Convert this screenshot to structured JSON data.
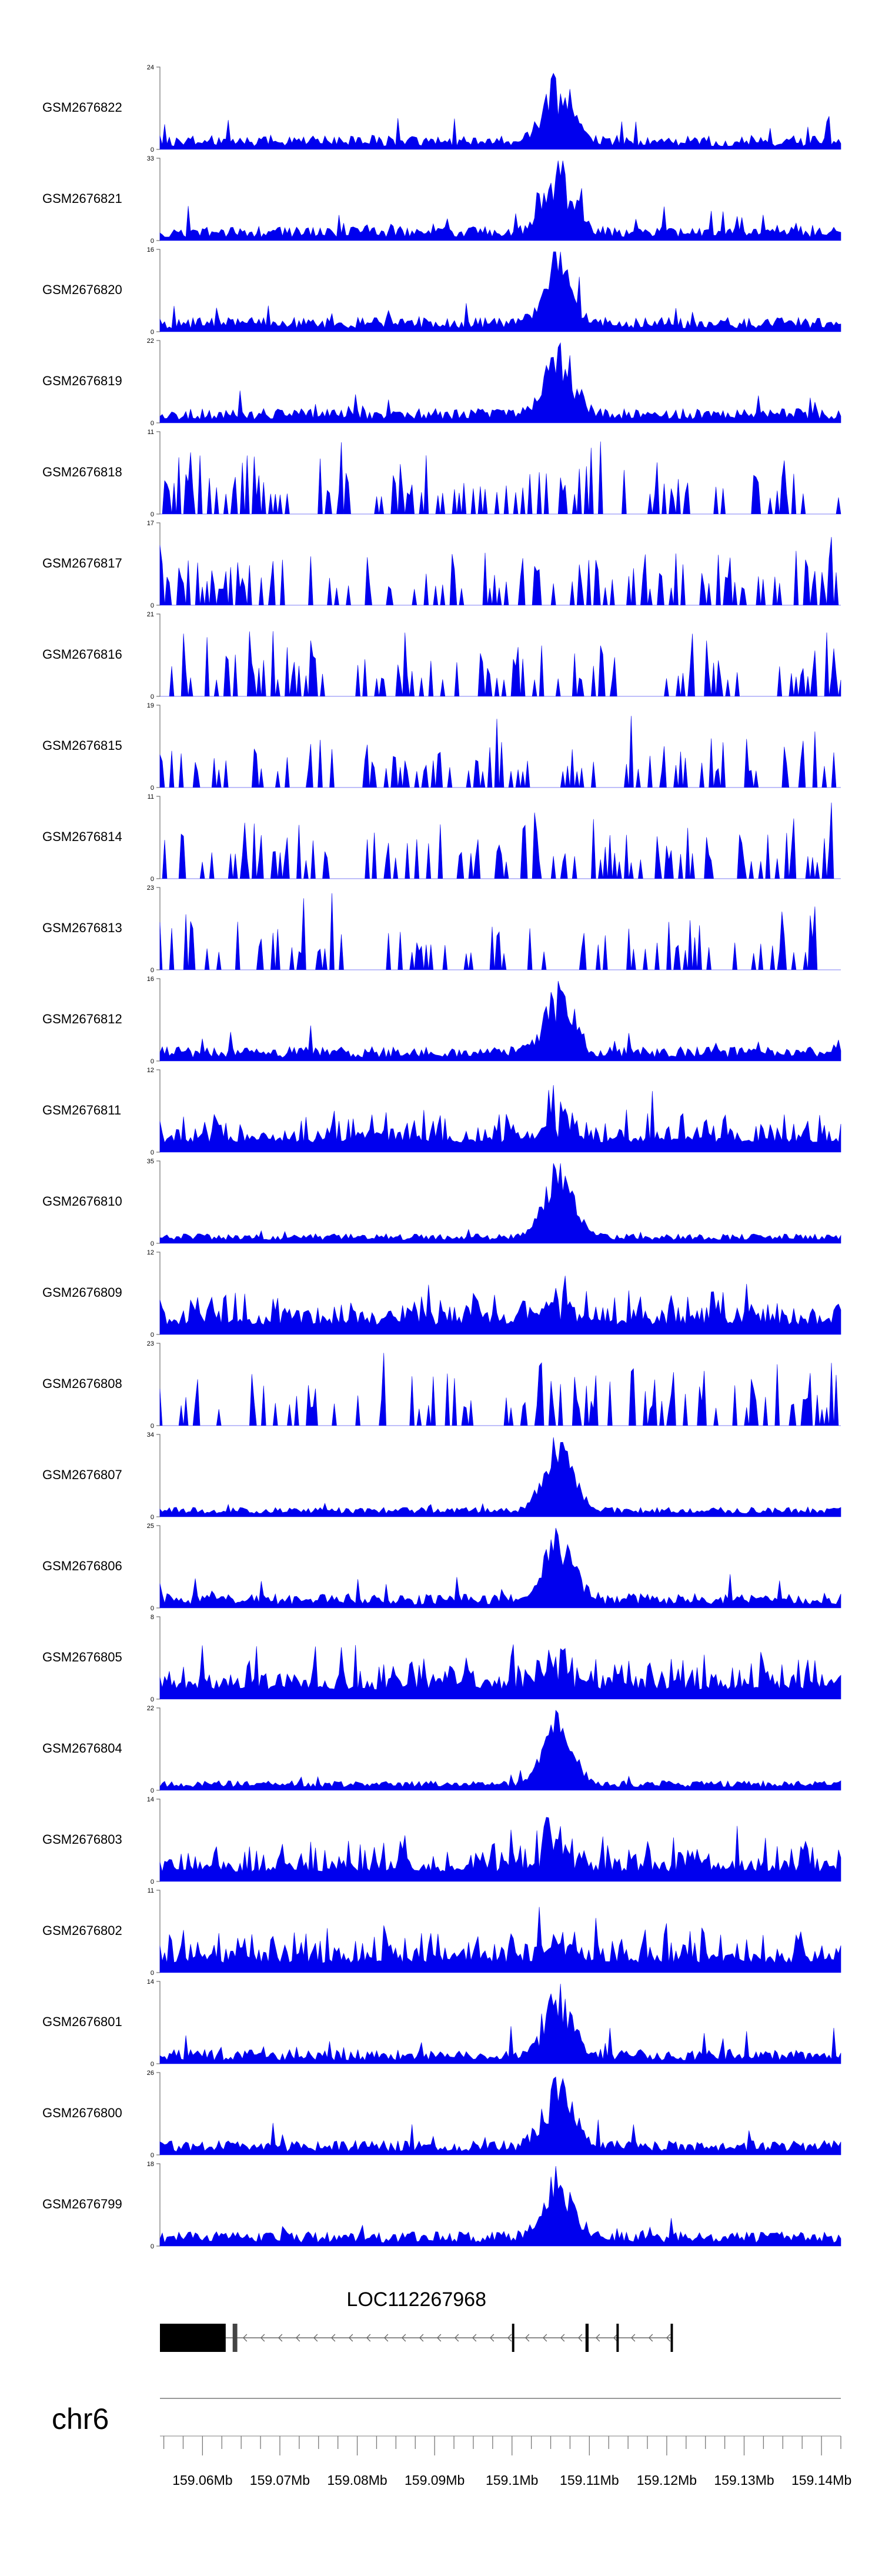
{
  "chart_data": {
    "type": "area",
    "title": "",
    "color": "#0000ee",
    "chromosome": "chr6",
    "x_range_mb": [
      159.0545,
      159.1425
    ],
    "x_ticks_mb": [
      159.06,
      159.07,
      159.08,
      159.09,
      159.1,
      159.11,
      159.12,
      159.13,
      159.14
    ],
    "x_tick_labels": [
      "159.06Mb",
      "159.07Mb",
      "159.08Mb",
      "159.09Mb",
      "159.1Mb",
      "159.11Mb",
      "159.12Mb",
      "159.13Mb",
      "159.14Mb"
    ],
    "series": [
      {
        "name": "GSM2676822",
        "ymax": 24,
        "ymax_label": "24",
        "ymin_label": "0",
        "style": "dense",
        "seed": 11
      },
      {
        "name": "GSM2676821",
        "ymax": 33,
        "ymax_label": "33",
        "ymin_label": "0",
        "style": "dense",
        "seed": 12
      },
      {
        "name": "GSM2676820",
        "ymax": 16,
        "ymax_label": "16",
        "ymin_label": "0",
        "style": "dense",
        "seed": 13
      },
      {
        "name": "GSM2676819",
        "ymax": 22,
        "ymax_label": "22",
        "ymin_label": "0",
        "style": "dense",
        "seed": 14
      },
      {
        "name": "GSM2676818",
        "ymax": 11,
        "ymax_label": "11",
        "ymin_label": "0",
        "style": "sparse",
        "seed": 15
      },
      {
        "name": "GSM2676817",
        "ymax": 17,
        "ymax_label": "17",
        "ymin_label": "0",
        "style": "sparse",
        "seed": 16
      },
      {
        "name": "GSM2676816",
        "ymax": 21,
        "ymax_label": "21",
        "ymin_label": "0",
        "style": "sparse",
        "seed": 17
      },
      {
        "name": "GSM2676815",
        "ymax": 19,
        "ymax_label": "19",
        "ymin_label": "0",
        "style": "sparse",
        "seed": 18
      },
      {
        "name": "GSM2676814",
        "ymax": 11,
        "ymax_label": "11",
        "ymin_label": "0",
        "style": "sparse",
        "seed": 19
      },
      {
        "name": "GSM2676813",
        "ymax": 23,
        "ymax_label": "23",
        "ymin_label": "0",
        "style": "sparse",
        "seed": 20
      },
      {
        "name": "GSM2676812",
        "ymax": 16,
        "ymax_label": "16",
        "ymin_label": "0",
        "style": "dense",
        "seed": 21
      },
      {
        "name": "GSM2676811",
        "ymax": 12,
        "ymax_label": "12",
        "ymin_label": "0",
        "style": "noisy",
        "seed": 22
      },
      {
        "name": "GSM2676810",
        "ymax": 35,
        "ymax_label": "35",
        "ymin_label": "0",
        "style": "peak",
        "seed": 23
      },
      {
        "name": "GSM2676809",
        "ymax": 12,
        "ymax_label": "12",
        "ymin_label": "0",
        "style": "noisy",
        "seed": 24
      },
      {
        "name": "GSM2676808",
        "ymax": 23,
        "ymax_label": "23",
        "ymin_label": "0",
        "style": "sparse",
        "seed": 25
      },
      {
        "name": "GSM2676807",
        "ymax": 34,
        "ymax_label": "34",
        "ymin_label": "0",
        "style": "peak",
        "seed": 26
      },
      {
        "name": "GSM2676806",
        "ymax": 25,
        "ymax_label": "25",
        "ymin_label": "0",
        "style": "dense",
        "seed": 27
      },
      {
        "name": "GSM2676805",
        "ymax": 8,
        "ymax_label": "8",
        "ymin_label": "0",
        "style": "noisy",
        "seed": 28
      },
      {
        "name": "GSM2676804",
        "ymax": 22,
        "ymax_label": "22",
        "ymin_label": "0",
        "style": "peak",
        "seed": 29
      },
      {
        "name": "GSM2676803",
        "ymax": 14,
        "ymax_label": "14",
        "ymin_label": "0",
        "style": "noisy",
        "seed": 30
      },
      {
        "name": "GSM2676802",
        "ymax": 11,
        "ymax_label": "11",
        "ymin_label": "0",
        "style": "noisy",
        "seed": 31
      },
      {
        "name": "GSM2676801",
        "ymax": 14,
        "ymax_label": "14",
        "ymin_label": "0",
        "style": "dense",
        "seed": 32
      },
      {
        "name": "GSM2676800",
        "ymax": 26,
        "ymax_label": "26",
        "ymin_label": "0",
        "style": "dense",
        "seed": 33
      },
      {
        "name": "GSM2676799",
        "ymax": 18,
        "ymax_label": "18",
        "ymin_label": "0",
        "style": "dense",
        "seed": 34
      }
    ],
    "gene": {
      "name": "LOC112267968",
      "strand": "-",
      "exons_mb": [
        [
          159.0545,
          159.063
        ],
        [
          159.0639,
          159.0645
        ],
        [
          159.1,
          159.1003
        ],
        [
          159.1095,
          159.1099
        ],
        [
          159.1135,
          159.1138
        ],
        [
          159.1205,
          159.1208
        ]
      ],
      "intron_mb": [
        159.063,
        159.1208
      ]
    }
  }
}
